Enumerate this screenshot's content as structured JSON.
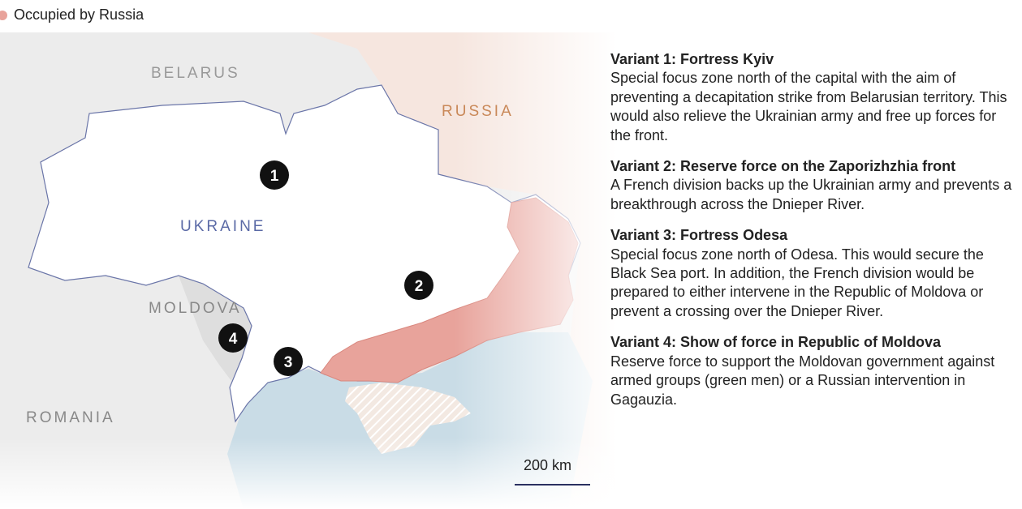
{
  "legend": {
    "label": "Occupied by Russia",
    "color": "#e8a39b"
  },
  "map": {
    "countries": {
      "belarus": "BELARUS",
      "russia": "RUSSIA",
      "ukraine": "UKRAINE",
      "moldova": "MOLDOVA",
      "romania": "ROMANIA"
    },
    "markers": [
      "1",
      "2",
      "3",
      "4"
    ],
    "scale": "200 km",
    "colors": {
      "occupied": "#e8a39b",
      "ukraine": "#ffffff",
      "russia": "#f6e6df",
      "sea": "#c9dce6",
      "marker": "#111111",
      "ukraine_label": "#5b6aa6",
      "russia_label": "#c98858"
    }
  },
  "variants": [
    {
      "title": "Variant 1: Fortress Kyiv",
      "text": "Special focus zone north of the capital with the aim of preventing a decapitation strike from Belarusian territory. This would also relieve the Ukrainian army and free up forces for the front."
    },
    {
      "title": "Variant 2: Reserve force on the Zaporizhzhia front",
      "text": "A French division backs up the Ukrainian army and prevents a breakthrough across the Dnieper River."
    },
    {
      "title": "Variant 3: Fortress Odesa",
      "text": "Special focus zone north of Odesa. This would secure the Black Sea port. In addition, the French division would be prepared to either intervene in the Republic of Moldova or prevent a crossing over the Dnieper River."
    },
    {
      "title": "Variant 4: Show of force in Republic of Moldova",
      "text": "Reserve force to support the Moldovan government against armed groups (green men) or a Russian intervention in Gagauzia."
    }
  ]
}
